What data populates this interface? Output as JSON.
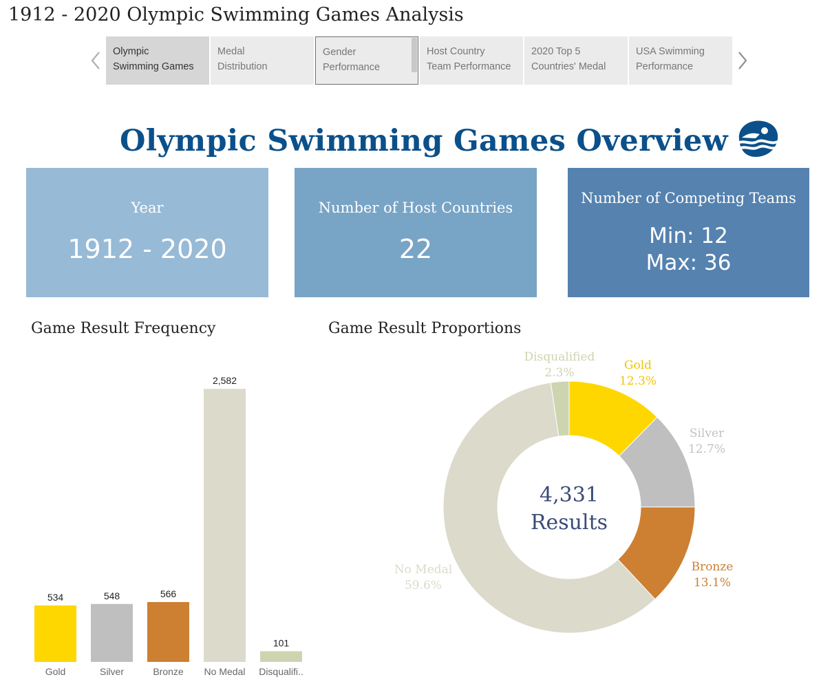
{
  "app": {
    "title": "1912 - 2020 Olympic Swimming Games Analysis"
  },
  "tabs": [
    {
      "label_line1": "Olympic",
      "label_line2": "Swimming Games"
    },
    {
      "label_line1": "Medal",
      "label_line2": "Distribution"
    },
    {
      "label_line1": "Gender",
      "label_line2": "Performance"
    },
    {
      "label_line1": "Host Country",
      "label_line2": "Team Performance"
    },
    {
      "label_line1": "2020 Top 5",
      "label_line2": "Countries' Medal"
    },
    {
      "label_line1": "USA Swimming",
      "label_line2": "Performance"
    }
  ],
  "active_tab": 0,
  "overview": {
    "title": "Olympic Swimming Games Overview",
    "logo_icon": "swimmer-logo-icon"
  },
  "kpis": {
    "year": {
      "label": "Year",
      "value": "1912 - 2020"
    },
    "hosts": {
      "label": "Number of Host Countries",
      "value": "22"
    },
    "teams": {
      "label": "Number of Competing Teams",
      "min": "Min: 12",
      "max": "Max: 36"
    }
  },
  "colors": {
    "gold": "#fed700",
    "silver": "#bfbfbf",
    "bronze": "#cd7f32",
    "no_medal": "#dcdacb",
    "disqualified": "#cdd5b0",
    "kpi1": "#97bad6",
    "kpi2": "#78a4c6",
    "kpi3": "#5582af",
    "title_blue": "#0b508a",
    "center_text": "#3c4a78"
  },
  "chart_data": [
    {
      "type": "bar",
      "title": "Game Result Frequency",
      "categories": [
        "Gold",
        "Silver",
        "Bronze",
        "No Medal",
        "Disqualifi.."
      ],
      "values": [
        534,
        548,
        566,
        2582,
        101
      ],
      "value_labels": [
        "534",
        "548",
        "566",
        "2,582",
        "101"
      ],
      "colors": [
        "#fed700",
        "#bfbfbf",
        "#cd7f32",
        "#dcdacb",
        "#cdd5b0"
      ],
      "ylim": [
        0,
        2700
      ],
      "grid": false
    },
    {
      "type": "pie",
      "variant": "donut",
      "title": "Game Result Proportions",
      "center_value": "4,331",
      "center_label": "Results",
      "slices": [
        {
          "name": "Gold",
          "percent": "12.3%",
          "value": 534,
          "color": "#fed700",
          "label_color": "#f2c500"
        },
        {
          "name": "Silver",
          "percent": "12.7%",
          "value": 548,
          "color": "#bfbfbf",
          "label_color": "#c2c2c2"
        },
        {
          "name": "Bronze",
          "percent": "13.1%",
          "value": 566,
          "color": "#cd7f32",
          "label_color": "#cd7f32"
        },
        {
          "name": "No Medal",
          "percent": "59.6%",
          "value": 2582,
          "color": "#dcdacb",
          "label_color": "#dcdacb"
        },
        {
          "name": "Disqualified",
          "percent": "2.3%",
          "value": 101,
          "color": "#cdd5b0",
          "label_color": "#cdd5b0"
        }
      ]
    }
  ]
}
